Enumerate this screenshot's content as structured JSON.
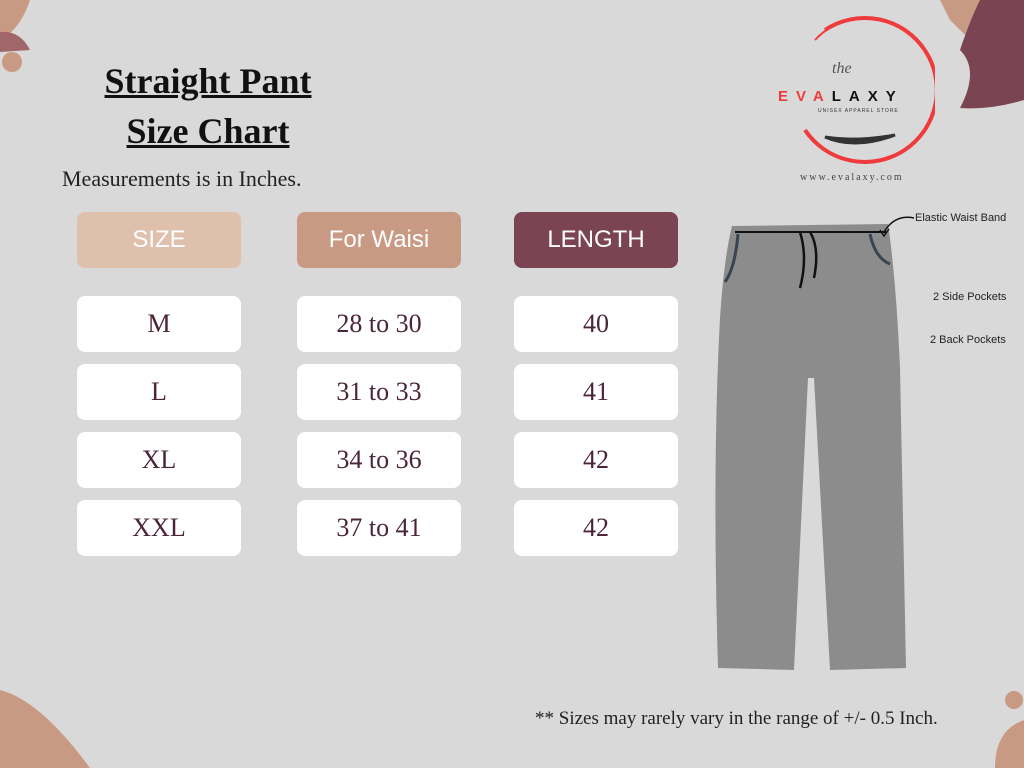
{
  "title_line1": "Straight Pant",
  "title_line2": "Size Chart",
  "subtitle": "Measurements is in Inches.",
  "headers": {
    "size": "SIZE",
    "waist": "For Waisi",
    "length": "LENGTH"
  },
  "header_colors": {
    "size": "#dfc0ac",
    "waist": "#c99a83",
    "length": "#7b4453"
  },
  "rows": [
    {
      "size": "M",
      "waist": "28 to 30",
      "length": "40"
    },
    {
      "size": "L",
      "waist": "31 to 33",
      "length": "41"
    },
    {
      "size": "XL",
      "waist": "34 to 36",
      "length": "42"
    },
    {
      "size": "XXL",
      "waist": "37 to 41",
      "length": "42"
    }
  ],
  "logo": {
    "the": "the",
    "brand_red": "EVA",
    "brand_black": "LAXY",
    "tagline": "UNISEX APPAREL STORE",
    "url": "www.evalaxy.com"
  },
  "annotations": {
    "waist": "Elastic Waist Band",
    "side": "2 Side Pockets",
    "back": "2 Back Pockets"
  },
  "footer": "** Sizes may rarely vary in the range of +/- 0.5 Inch."
}
